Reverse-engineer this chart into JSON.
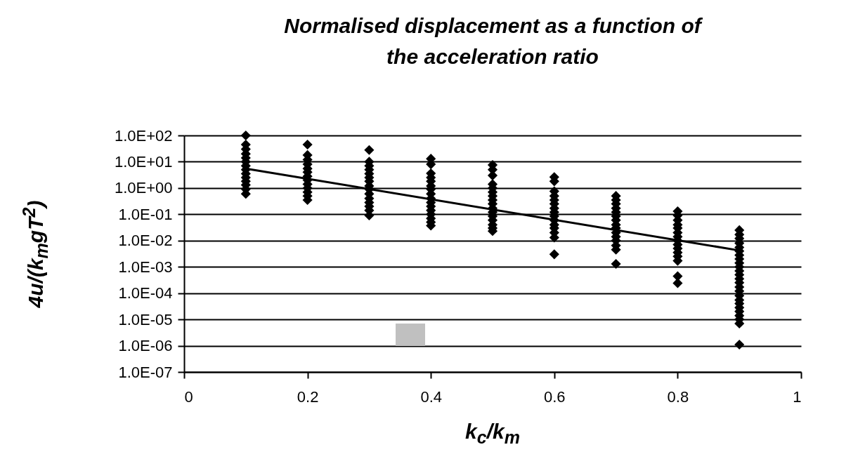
{
  "chart_data": {
    "type": "scatter",
    "title": "Normalised displacement as a function of\nthe acceleration ratio",
    "xlabel": "k$_{c}$/k$_{m}$",
    "ylabel": "4u/(k$_{m}$gT$^{2}$)",
    "xlim": [
      0,
      1
    ],
    "xticks": [
      0,
      0.2,
      0.4,
      0.6,
      0.8,
      1
    ],
    "log": "y",
    "ylim": [
      1e-07,
      100
    ],
    "yticks": [
      {
        "value": 100,
        "label": "1.0E+02"
      },
      {
        "value": 10,
        "label": "1.0E+01"
      },
      {
        "value": 1,
        "label": "1.0E+00"
      },
      {
        "value": 0.1,
        "label": "1.0E-01"
      },
      {
        "value": 0.01,
        "label": "1.0E-02"
      },
      {
        "value": 0.001,
        "label": "1.0E-03"
      },
      {
        "value": 0.0001,
        "label": "1.0E-04"
      },
      {
        "value": 1e-05,
        "label": "1.0E-05"
      },
      {
        "value": 1e-06,
        "label": "1.0E-06"
      },
      {
        "value": 1e-07,
        "label": "1.0E-07"
      }
    ],
    "grid": "y",
    "series": [
      {
        "color": "#000000",
        "marker": "diamond",
        "x": [
          0.1,
          0.1,
          0.1,
          0.1,
          0.1,
          0.1,
          0.1,
          0.1,
          0.1,
          0.1,
          0.1,
          0.1,
          0.1,
          0.1,
          0.2,
          0.2,
          0.2,
          0.2,
          0.2,
          0.2,
          0.2,
          0.2,
          0.2,
          0.2,
          0.2,
          0.2,
          0.2,
          0.3,
          0.3,
          0.3,
          0.3,
          0.3,
          0.3,
          0.3,
          0.3,
          0.3,
          0.3,
          0.3,
          0.3,
          0.3,
          0.3,
          0.3,
          0.4,
          0.4,
          0.4,
          0.4,
          0.4,
          0.4,
          0.4,
          0.4,
          0.4,
          0.4,
          0.4,
          0.4,
          0.4,
          0.4,
          0.4,
          0.4,
          0.5,
          0.5,
          0.5,
          0.5,
          0.5,
          0.5,
          0.5,
          0.5,
          0.5,
          0.5,
          0.5,
          0.5,
          0.5,
          0.5,
          0.5,
          0.5,
          0.6,
          0.6,
          0.6,
          0.6,
          0.6,
          0.6,
          0.6,
          0.6,
          0.6,
          0.6,
          0.6,
          0.6,
          0.6,
          0.6,
          0.6,
          0.7,
          0.7,
          0.7,
          0.7,
          0.7,
          0.7,
          0.7,
          0.7,
          0.7,
          0.7,
          0.7,
          0.7,
          0.7,
          0.7,
          0.7,
          0.8,
          0.8,
          0.8,
          0.8,
          0.8,
          0.8,
          0.8,
          0.8,
          0.8,
          0.8,
          0.8,
          0.8,
          0.8,
          0.8,
          0.8,
          0.9,
          0.9,
          0.9,
          0.9,
          0.9,
          0.9,
          0.9,
          0.9,
          0.9,
          0.9,
          0.9,
          0.9,
          0.9,
          0.9,
          0.9,
          0.9,
          0.9,
          0.9,
          0.9,
          0.9,
          0.9,
          0.9,
          0.9,
          0.9,
          0.9
        ],
        "values": [
          100,
          45,
          30,
          20,
          14,
          10,
          7,
          5,
          3.5,
          2.5,
          1.8,
          1.3,
          0.9,
          0.6,
          45,
          18,
          12,
          8,
          5.5,
          4,
          2.8,
          2,
          1.4,
          1,
          0.7,
          0.5,
          0.35,
          28,
          10,
          7,
          5,
          3.5,
          2.5,
          1.8,
          1.2,
          0.9,
          0.6,
          0.4,
          0.28,
          0.2,
          0.14,
          0.09,
          13,
          8,
          3.6,
          2.5,
          1.8,
          1.2,
          0.9,
          0.6,
          0.4,
          0.28,
          0.2,
          0.14,
          0.1,
          0.07,
          0.05,
          0.037,
          7.5,
          5,
          3,
          1.4,
          1,
          0.7,
          0.5,
          0.35,
          0.25,
          0.17,
          0.12,
          0.085,
          0.06,
          0.04,
          0.03,
          0.023,
          2.6,
          1.8,
          0.75,
          0.5,
          0.35,
          0.25,
          0.17,
          0.12,
          0.085,
          0.06,
          0.04,
          0.03,
          0.02,
          0.013,
          0.003,
          0.5,
          0.35,
          0.25,
          0.17,
          0.12,
          0.085,
          0.06,
          0.04,
          0.03,
          0.02,
          0.014,
          0.01,
          0.0065,
          0.0045,
          0.0013,
          0.13,
          0.09,
          0.06,
          0.04,
          0.03,
          0.02,
          0.014,
          0.01,
          0.007,
          0.005,
          0.0035,
          0.0025,
          0.0017,
          0.00044,
          0.00024,
          0.025,
          0.017,
          0.012,
          0.008,
          0.0055,
          0.004,
          0.0028,
          0.002,
          0.0014,
          0.001,
          0.0007,
          0.0005,
          0.00035,
          0.00025,
          0.00017,
          0.00012,
          8e-05,
          5.5e-05,
          4e-05,
          2.8e-05,
          2e-05,
          1.4e-05,
          1e-05,
          7e-06,
          1.1e-06
        ]
      },
      {
        "type": "line",
        "color": "#000000",
        "x": [
          0.1,
          0.9
        ],
        "values": [
          5.5,
          0.0042
        ]
      }
    ]
  }
}
